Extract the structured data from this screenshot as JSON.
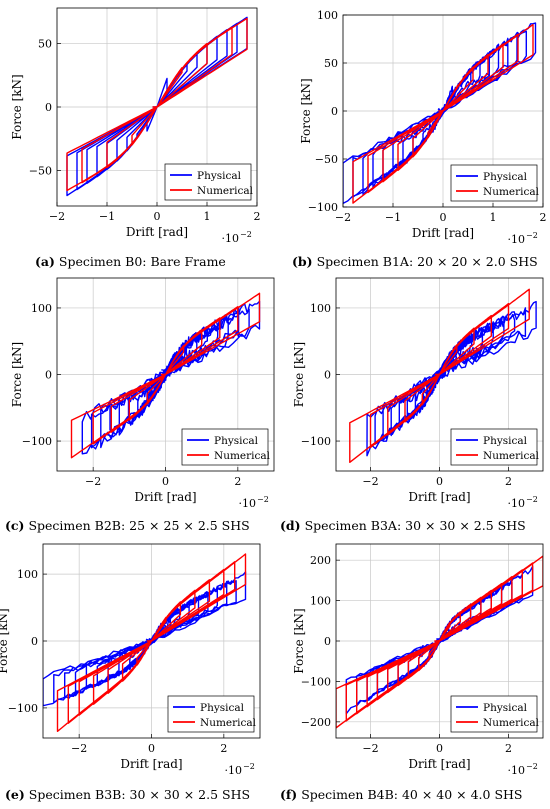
{
  "chart_data": [
    {
      "type": "line",
      "letter": "(a)",
      "caption": "Specimen B0: Bare Frame",
      "xlabel": "Drift [rad]",
      "ylabel": "Force [kN]",
      "x_multiplier": "·10",
      "x_exponent": "−2",
      "xlim": [
        -2,
        2
      ],
      "ylim": [
        -78,
        78
      ],
      "xticks": [
        "−2",
        "−1",
        "0",
        "1",
        "2"
      ],
      "xtick_values": [
        -2,
        -1,
        0,
        1,
        2
      ],
      "yticks": [
        "−50",
        "0",
        "50"
      ],
      "ytick_values": [
        -50,
        0,
        50
      ],
      "grid": true,
      "legend_position": "bottom-right",
      "series": [
        {
          "name": "Physical",
          "color": "#0000ff",
          "amplitudes": [
            0.2,
            0.4,
            0.6,
            0.8,
            1.0,
            1.2,
            1.4,
            1.6,
            1.8
          ],
          "peak": [
            1.8,
            71
          ],
          "trough": [
            -1.8,
            -70
          ],
          "yield_force": 30,
          "stiffness": 22,
          "jitter": 0
        },
        {
          "name": "Numerical",
          "color": "#ff0000",
          "amplitudes": [
            0.5,
            1.0,
            1.5,
            1.8
          ],
          "peak": [
            1.8,
            70
          ],
          "trough": [
            -1.8,
            -66
          ],
          "yield_force": 31,
          "stiffness": 24,
          "jitter": 0
        }
      ]
    },
    {
      "type": "line",
      "letter": "(b)",
      "caption": "Specimen B1A: 20 × 20 × 2.0 SHS",
      "xlabel": "Drift [rad]",
      "ylabel": "Force [kN]",
      "x_multiplier": "·10",
      "x_exponent": "−2",
      "xlim": [
        -2,
        2
      ],
      "ylim": [
        -100,
        100
      ],
      "xticks": [
        "−2",
        "−1",
        "0",
        "1",
        "2"
      ],
      "xtick_values": [
        -2,
        -1,
        0,
        1,
        2
      ],
      "yticks": [
        "−100",
        "−50",
        "0",
        "50",
        "100"
      ],
      "ytick_values": [
        -100,
        -50,
        0,
        50,
        100
      ],
      "grid": true,
      "legend_position": "bottom-right",
      "series": [
        {
          "name": "Physical",
          "color": "#0000ff",
          "amplitudes": [
            0.2,
            0.4,
            0.6,
            0.8,
            1.0,
            1.2,
            1.4,
            1.6,
            1.8,
            2.0
          ],
          "peak": [
            1.85,
            92
          ],
          "trough": [
            -2.0,
            -98
          ],
          "yield_force": 30,
          "stiffness": 30,
          "jitter": 3
        },
        {
          "name": "Numerical",
          "color": "#ff0000",
          "amplitudes": [
            0.3,
            0.6,
            0.9,
            1.2,
            1.5,
            1.8
          ],
          "peak": [
            1.8,
            90
          ],
          "trough": [
            -1.8,
            -96
          ],
          "yield_force": 30,
          "stiffness": 32,
          "jitter": 0
        }
      ]
    },
    {
      "type": "line",
      "letter": "(c)",
      "caption": "Specimen B2B: 25 × 25 × 2.5 SHS",
      "xlabel": "Drift [rad]",
      "ylabel": "Force [kN]",
      "x_multiplier": "·10",
      "x_exponent": "−2",
      "xlim": [
        -3,
        3
      ],
      "ylim": [
        -145,
        145
      ],
      "xticks": [
        "−2",
        "0",
        "2"
      ],
      "xtick_values": [
        -2,
        0,
        2
      ],
      "yticks": [
        "−100",
        "0",
        "100"
      ],
      "ytick_values": [
        -100,
        0,
        100
      ],
      "grid": true,
      "legend_position": "bottom-right",
      "series": [
        {
          "name": "Physical",
          "color": "#0000ff",
          "amplitudes": [
            0.3,
            0.6,
            0.9,
            1.2,
            1.5,
            1.8,
            2.1,
            2.4,
            2.7
          ],
          "peak": [
            2.6,
            110
          ],
          "trough": [
            -2.3,
            -120
          ],
          "yield_force": 35,
          "stiffness": 35,
          "jitter": 9
        },
        {
          "name": "Numerical",
          "color": "#ff0000",
          "amplitudes": [
            0.5,
            1.0,
            1.5,
            2.0,
            2.6
          ],
          "peak": [
            2.6,
            122
          ],
          "trough": [
            -2.6,
            -125
          ],
          "yield_force": 35,
          "stiffness": 35,
          "jitter": 0
        }
      ]
    },
    {
      "type": "line",
      "letter": "(d)",
      "caption": "Specimen B3A: 30 × 30 × 2.5 SHS",
      "xlabel": "Drift [rad]",
      "ylabel": "Force [kN]",
      "x_multiplier": "·10",
      "x_exponent": "−2",
      "xlim": [
        -3,
        3
      ],
      "ylim": [
        -145,
        145
      ],
      "xticks": [
        "−2",
        "0",
        "2"
      ],
      "xtick_values": [
        -2,
        0,
        2
      ],
      "yticks": [
        "−100",
        "0",
        "100"
      ],
      "ytick_values": [
        -100,
        0,
        100
      ],
      "grid": true,
      "legend_position": "bottom-right",
      "series": [
        {
          "name": "Physical",
          "color": "#0000ff",
          "amplitudes": [
            0.3,
            0.6,
            0.9,
            1.2,
            1.5,
            1.8,
            2.1,
            2.4,
            2.7
          ],
          "peak": [
            2.8,
            105
          ],
          "trough": [
            -2.1,
            -115
          ],
          "yield_force": 35,
          "stiffness": 35,
          "jitter": 8
        },
        {
          "name": "Numerical",
          "color": "#ff0000",
          "amplitudes": [
            0.5,
            1.0,
            1.5,
            2.0,
            2.6
          ],
          "peak": [
            2.6,
            128
          ],
          "trough": [
            -2.6,
            -132
          ],
          "yield_force": 35,
          "stiffness": 35,
          "jitter": 0
        }
      ]
    },
    {
      "type": "line",
      "letter": "(e)",
      "caption": "Specimen B3B: 30 × 30 × 2.5 SHS",
      "xlabel": "Drift [rad]",
      "ylabel": "Force [kN]",
      "x_multiplier": "·10",
      "x_exponent": "−2",
      "xlim": [
        -3,
        3
      ],
      "ylim": [
        -145,
        145
      ],
      "xticks": [
        "−2",
        "0",
        "2"
      ],
      "xtick_values": [
        -2,
        0,
        2
      ],
      "yticks": [
        "−100",
        "0",
        "100"
      ],
      "ytick_values": [
        -100,
        0,
        100
      ],
      "grid": true,
      "legend_position": "bottom-right",
      "series": [
        {
          "name": "Physical",
          "color": "#0000ff",
          "amplitudes": [
            0.3,
            0.6,
            0.9,
            1.2,
            1.5,
            1.8,
            2.1,
            2.4,
            2.7,
            3.0
          ],
          "peak": [
            2.6,
            100
          ],
          "trough": [
            -3.0,
            -100
          ],
          "yield_force": 30,
          "stiffness": 30,
          "jitter": 4
        },
        {
          "name": "Numerical",
          "color": "#ff0000",
          "amplitudes": [
            0.4,
            0.8,
            1.2,
            1.6,
            2.0,
            2.3,
            2.6
          ],
          "peak": [
            2.6,
            130
          ],
          "trough": [
            -2.6,
            -135
          ],
          "yield_force": 30,
          "stiffness": 30,
          "jitter": 0
        }
      ]
    },
    {
      "type": "line",
      "letter": "(f)",
      "caption": "Specimen B4B: 40 × 40 × 4.0 SHS",
      "xlabel": "Drift [rad]",
      "ylabel": "Force [kN]",
      "x_multiplier": "·10",
      "x_exponent": "−2",
      "xlim": [
        -3,
        3
      ],
      "ylim": [
        -240,
        240
      ],
      "xticks": [
        "−2",
        "0",
        "2"
      ],
      "xtick_values": [
        -2,
        0,
        2
      ],
      "yticks": [
        "−200",
        "−100",
        "0",
        "100",
        "200"
      ],
      "ytick_values": [
        -200,
        -100,
        0,
        100,
        200
      ],
      "grid": true,
      "legend_position": "bottom-right",
      "series": [
        {
          "name": "Physical",
          "color": "#0000ff",
          "amplitudes": [
            0.3,
            0.6,
            0.9,
            1.2,
            1.5,
            1.8,
            2.1,
            2.4,
            2.7
          ],
          "peak": [
            2.7,
            180
          ],
          "trough": [
            -2.7,
            -175
          ],
          "yield_force": 40,
          "stiffness": 60,
          "jitter": 6
        },
        {
          "name": "Numerical",
          "color": "#ff0000",
          "amplitudes": [
            0.3,
            0.6,
            0.9,
            1.2,
            1.5,
            1.8,
            2.1,
            2.4,
            2.7,
            3.0
          ],
          "peak": [
            3.0,
            210
          ],
          "trough": [
            -3.0,
            -215
          ],
          "yield_force": 40,
          "stiffness": 60,
          "jitter": 0
        }
      ]
    }
  ]
}
